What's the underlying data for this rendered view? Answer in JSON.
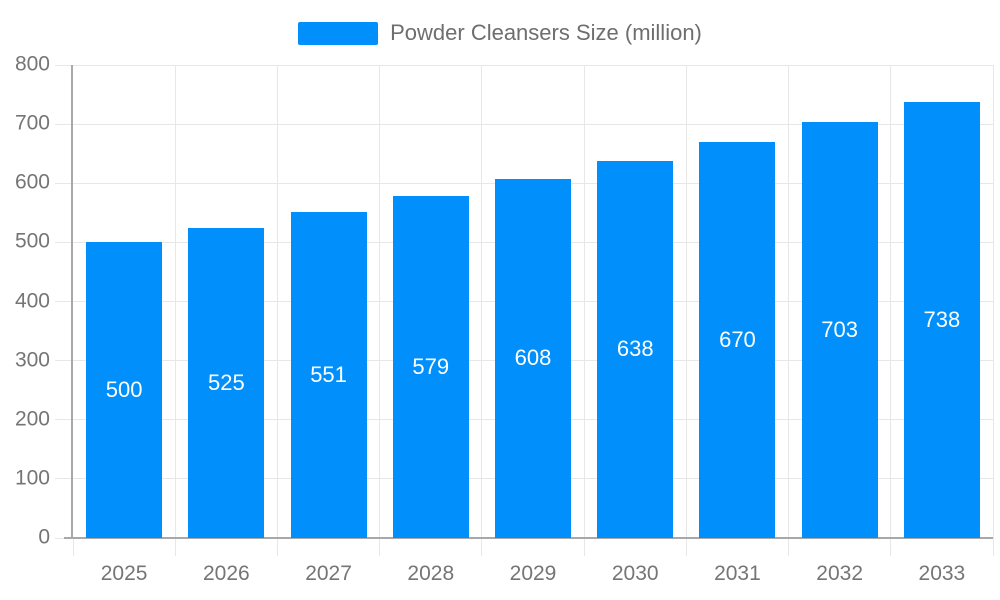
{
  "legend": {
    "label": "Powder Cleansers Size (million)"
  },
  "colors": {
    "bar": "#008FFB",
    "grid": "#e7e7e7",
    "axis": "#a8a8a8",
    "tick_label": "#757575",
    "value_label": "#ffffff",
    "legend_label": "#6e6e6e",
    "background": "#ffffff"
  },
  "chart_data": {
    "type": "bar",
    "title": "Powder Cleansers Size (million)",
    "categories": [
      "2025",
      "2026",
      "2027",
      "2028",
      "2029",
      "2030",
      "2031",
      "2032",
      "2033"
    ],
    "values": [
      500,
      525,
      551,
      579,
      608,
      638,
      670,
      703,
      738
    ],
    "xlabel": "",
    "ylabel": "",
    "ylim": [
      0,
      800
    ],
    "yticks": [
      0,
      100,
      200,
      300,
      400,
      500,
      600,
      700,
      800
    ],
    "grid": true,
    "legend_position": "top",
    "bar_label_position": "middle",
    "bar_label_color": "#ffffff"
  }
}
